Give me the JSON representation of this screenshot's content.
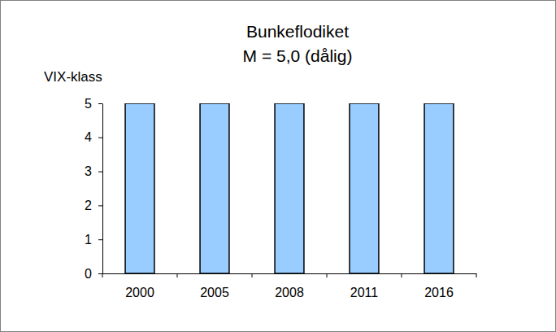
{
  "chart_data": {
    "type": "bar",
    "title": "Bunkeflodiket",
    "subtitle": "M = 5,0 (dålig)",
    "y_label": "VIX-klass",
    "categories": [
      "2000",
      "2005",
      "2008",
      "2011",
      "2016"
    ],
    "values": [
      5,
      5,
      5,
      5,
      5
    ],
    "color": "#99ccff",
    "ylim": [
      0,
      5
    ],
    "yticks": [
      0,
      1,
      2,
      3,
      4,
      5
    ],
    "grid": false
  }
}
